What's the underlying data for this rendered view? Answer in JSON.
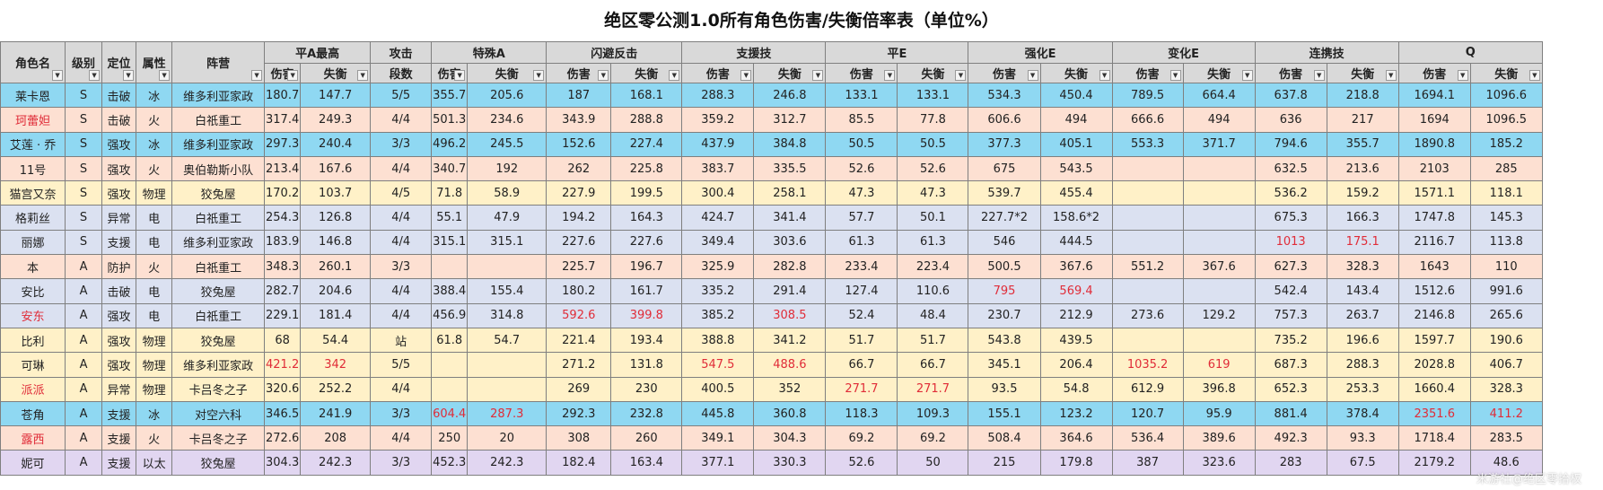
{
  "title": "绝区零公测1.0所有角色伤害/失衡倍率表（单位%）",
  "watermark": "米游社@绝区零拾权",
  "headers": {
    "name": "角色名",
    "level": "级别",
    "role": "定位",
    "attr": "属性",
    "faction": "阵营",
    "attack_count_top": "攻击",
    "attack_count_bottom": "段数",
    "groups": [
      "平A最高",
      "特殊A",
      "闪避反击",
      "支援技",
      "平E",
      "强化E",
      "变化E",
      "连携技",
      "Q"
    ],
    "dmg": "伤害",
    "daze": "失衡"
  },
  "row_colors": {
    "c-blue": "#8fd8f2",
    "c-peach": "#fde0d2",
    "c-yellow": "#fff1c8",
    "c-lav": "#dbe1f1",
    "c-purple": "#e1d6f1",
    "highlight_text": "#e02c38"
  },
  "rows": [
    {
      "name": "莱卡恩",
      "level": "S",
      "role": "击破",
      "attr": "冰",
      "faction": "维多利亚家政",
      "hits": "5/5",
      "color": "c-blue",
      "vals": [
        "180.7",
        "147.7",
        "355.7",
        "205.6",
        "187",
        "168.1",
        "288.3",
        "246.8",
        "133.1",
        "133.1",
        "534.3",
        "450.4",
        "789.5",
        "664.4",
        "637.8",
        "218.8",
        "1694.1",
        "1096.6"
      ]
    },
    {
      "name": "珂蕾妲",
      "name_red": true,
      "level": "S",
      "role": "击破",
      "attr": "火",
      "faction": "白祇重工",
      "hits": "4/4",
      "color": "c-peach",
      "vals": [
        "317.4",
        "249.3",
        "501.3",
        "234.6",
        "343.9",
        "288.8",
        "359.2",
        "312.7",
        "85.5",
        "77.8",
        "606.6",
        "494",
        "666.6",
        "494",
        "636",
        "217",
        "1694",
        "1096.5"
      ]
    },
    {
      "name": "艾莲 · 乔",
      "level": "S",
      "role": "强攻",
      "attr": "冰",
      "faction": "维多利亚家政",
      "hits": "3/3",
      "color": "c-blue",
      "vals": [
        "297.3",
        "240.4",
        "496.2",
        "245.5",
        "152.6",
        "227.4",
        "437.9",
        "384.8",
        "50.5",
        "50.5",
        "377.3",
        "405.1",
        "553.3",
        "371.7",
        "794.6",
        "355.7",
        "1890.8",
        "185.2"
      ]
    },
    {
      "name": "11号",
      "level": "S",
      "role": "强攻",
      "attr": "火",
      "faction": "奥伯勒斯小队",
      "hits": "4/4",
      "color": "c-peach",
      "vals": [
        "213.4",
        "167.6",
        "340.7",
        "192",
        "262",
        "225.8",
        "383.7",
        "335.5",
        "52.6",
        "52.6",
        "675",
        "543.5",
        "",
        "",
        "632.5",
        "213.6",
        "2103",
        "285"
      ]
    },
    {
      "name": "猫宫又奈",
      "level": "S",
      "role": "强攻",
      "attr": "物理",
      "faction": "狡兔屋",
      "hits": "4/5",
      "color": "c-yellow",
      "vals": [
        "170.2",
        "103.7",
        "71.8",
        "58.9",
        "227.9",
        "199.5",
        "300.4",
        "258.1",
        "47.3",
        "47.3",
        "539.7",
        "455.4",
        "",
        "",
        "536.2",
        "159.2",
        "1571.1",
        "118.1"
      ]
    },
    {
      "name": "格莉丝",
      "level": "S",
      "role": "异常",
      "attr": "电",
      "faction": "白祇重工",
      "hits": "4/4",
      "color": "c-lav",
      "vals": [
        "254.3",
        "126.8",
        "55.1",
        "47.9",
        "194.2",
        "164.3",
        "424.7",
        "341.4",
        "57.7",
        "50.1",
        "227.7*2",
        "158.6*2",
        "",
        "",
        "675.3",
        "166.3",
        "1747.8",
        "145.3"
      ]
    },
    {
      "name": "丽娜",
      "level": "S",
      "role": "支援",
      "attr": "电",
      "faction": "维多利亚家政",
      "hits": "4/4",
      "color": "c-lav",
      "red": [
        14,
        15
      ],
      "vals": [
        "183.9",
        "146.8",
        "315.1",
        "315.1",
        "227.6",
        "227.6",
        "349.4",
        "303.6",
        "61.3",
        "61.3",
        "546",
        "444.5",
        "",
        "",
        "1013",
        "175.1",
        "2116.7",
        "113.8"
      ]
    },
    {
      "name": "本",
      "level": "A",
      "role": "防护",
      "attr": "火",
      "faction": "白祇重工",
      "hits": "3/3",
      "color": "c-peach",
      "vals": [
        "348.3",
        "260.1",
        "",
        "",
        "225.7",
        "196.7",
        "325.9",
        "282.8",
        "233.4",
        "223.4",
        "500.5",
        "367.6",
        "551.2",
        "367.6",
        "627.3",
        "328.3",
        "1643",
        "110"
      ]
    },
    {
      "name": "安比",
      "level": "A",
      "role": "击破",
      "attr": "电",
      "faction": "狡兔屋",
      "hits": "4/4",
      "color": "c-lav",
      "red": [
        10,
        11
      ],
      "vals": [
        "282.7",
        "204.6",
        "388.4",
        "155.4",
        "180.2",
        "161.7",
        "335.2",
        "291.4",
        "127.4",
        "110.6",
        "795",
        "569.4",
        "",
        "",
        "542.4",
        "143.4",
        "1512.6",
        "991.6"
      ]
    },
    {
      "name": "安东",
      "name_red": true,
      "level": "A",
      "role": "强攻",
      "attr": "电",
      "faction": "白祇重工",
      "hits": "4/4",
      "color": "c-lav",
      "red": [
        4,
        5,
        7
      ],
      "vals": [
        "229.1",
        "181.4",
        "456.9",
        "314.8",
        "592.6",
        "399.8",
        "385.2",
        "308.5",
        "52.4",
        "48.4",
        "230.7",
        "212.9",
        "273.6",
        "129.2",
        "757.3",
        "263.7",
        "2146.8",
        "265.6"
      ]
    },
    {
      "name": "比利",
      "level": "A",
      "role": "强攻",
      "attr": "物理",
      "faction": "狡兔屋",
      "hits": "站",
      "color": "c-yellow",
      "vals": [
        "68",
        "54.4",
        "61.8",
        "54.7",
        "221.4",
        "193.4",
        "388.8",
        "341.2",
        "51.7",
        "51.7",
        "543.8",
        "439.5",
        "",
        "",
        "735.2",
        "196.6",
        "1597.7",
        "190.6"
      ]
    },
    {
      "name": "可琳",
      "level": "A",
      "role": "强攻",
      "attr": "物理",
      "faction": "维多利亚家政",
      "hits": "5/5",
      "color": "c-yellow",
      "red": [
        0,
        1,
        6,
        7,
        12,
        13
      ],
      "vals": [
        "421.2",
        "342",
        "",
        "",
        "271.2",
        "131.8",
        "547.5",
        "488.6",
        "66.7",
        "66.7",
        "345.1",
        "206.4",
        "1035.2",
        "619",
        "687.3",
        "288.3",
        "2028.8",
        "406.7"
      ]
    },
    {
      "name": "派派",
      "name_red": true,
      "level": "A",
      "role": "异常",
      "attr": "物理",
      "faction": "卡吕冬之子",
      "hits": "4/4",
      "color": "c-yellow",
      "red": [
        8,
        9
      ],
      "vals": [
        "320.6",
        "252.2",
        "",
        "",
        "269",
        "230",
        "400.5",
        "352",
        "271.7",
        "271.7",
        "93.5",
        "54.8",
        "612.9",
        "396.8",
        "652.3",
        "253.3",
        "1660.4",
        "328.3"
      ]
    },
    {
      "name": "苍角",
      "level": "A",
      "role": "支援",
      "attr": "冰",
      "faction": "对空六科",
      "hits": "3/3",
      "color": "c-blue",
      "red": [
        2,
        3,
        16,
        17
      ],
      "vals": [
        "346.5",
        "241.9",
        "604.4",
        "287.3",
        "292.3",
        "232.8",
        "445.8",
        "360.8",
        "118.3",
        "109.3",
        "155.1",
        "123.2",
        "120.7",
        "95.9",
        "881.4",
        "378.4",
        "2351.6",
        "411.2"
      ]
    },
    {
      "name": "露西",
      "name_red": true,
      "level": "A",
      "role": "支援",
      "attr": "火",
      "faction": "卡吕冬之子",
      "hits": "4/4",
      "color": "c-peach",
      "vals": [
        "272.6",
        "208",
        "250",
        "20",
        "308",
        "260",
        "349.1",
        "304.3",
        "69.2",
        "69.2",
        "508.4",
        "364.6",
        "536.4",
        "389.6",
        "492.3",
        "93.3",
        "1718.4",
        "283.5"
      ]
    },
    {
      "name": "妮可",
      "level": "A",
      "role": "支援",
      "attr": "以太",
      "faction": "狡兔屋",
      "hits": "3/3",
      "color": "c-purple",
      "vals": [
        "304.3",
        "242.3",
        "452.3",
        "242.3",
        "182.4",
        "163.4",
        "377.1",
        "330.3",
        "52.6",
        "50",
        "215",
        "179.8",
        "387",
        "323.6",
        "283",
        "67.5",
        "2179.2",
        "48.6"
      ]
    }
  ]
}
